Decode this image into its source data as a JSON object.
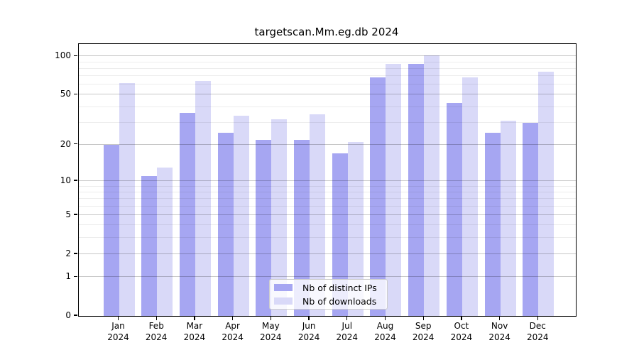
{
  "title": "targetscan.Mm.eg.db 2024",
  "colors": {
    "ips_bar": "#a6a6f2",
    "downloads_bar": "#d9d9f8",
    "grid_major": "rgba(0,0,0,0.22)",
    "grid_minor": "rgba(0,0,0,0.07)",
    "spine": "#000000",
    "legend_border": "#cccccc"
  },
  "legend": {
    "items": [
      {
        "label": "Nb of distinct IPs",
        "series": "ips"
      },
      {
        "label": "Nb of downloads",
        "series": "downloads"
      }
    ]
  },
  "y_axis": {
    "ticks": [
      0,
      1,
      2,
      5,
      10,
      20,
      50,
      100
    ],
    "minor_ticks": [
      3,
      4,
      6,
      7,
      8,
      9,
      30,
      40,
      60,
      70,
      80,
      90
    ],
    "scale": "log10(1+x)"
  },
  "x_axis": {
    "months": [
      "Jan",
      "Feb",
      "Mar",
      "Apr",
      "May",
      "Jun",
      "Jul",
      "Aug",
      "Sep",
      "Oct",
      "Nov",
      "Dec"
    ],
    "year": "2024"
  },
  "chart_data": {
    "type": "bar",
    "title": "targetscan.Mm.eg.db 2024",
    "categories": [
      "Jan 2024",
      "Feb 2024",
      "Mar 2024",
      "Apr 2024",
      "May 2024",
      "Jun 2024",
      "Jul 2024",
      "Aug 2024",
      "Sep 2024",
      "Oct 2024",
      "Nov 2024",
      "Dec 2024"
    ],
    "series": [
      {
        "name": "Nb of distinct IPs",
        "values": [
          20,
          11,
          36,
          25,
          22,
          22,
          17,
          68,
          87,
          43,
          25,
          30
        ]
      },
      {
        "name": "Nb of downloads",
        "values": [
          62,
          13,
          64,
          34,
          32,
          35,
          21,
          87,
          101,
          68,
          31,
          76
        ]
      }
    ],
    "yscale": "log10(1+x)",
    "yticks": [
      0,
      1,
      2,
      5,
      10,
      20,
      50,
      100
    ],
    "ylim": [
      0,
      124
    ],
    "grid": true,
    "legend_position": "lower center"
  }
}
